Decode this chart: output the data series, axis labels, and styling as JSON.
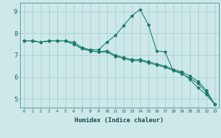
{
  "title": "",
  "xlabel": "Humidex (Indice chaleur)",
  "background_color": "#cce8e8",
  "grid_color": "#aacfcf",
  "line_color": "#1a7a6e",
  "x": [
    0,
    1,
    2,
    3,
    4,
    5,
    6,
    7,
    8,
    9,
    10,
    11,
    12,
    13,
    14,
    15,
    16,
    17,
    18,
    19,
    20,
    21,
    22,
    23
  ],
  "lines": [
    [
      7.65,
      7.65,
      7.6,
      7.65,
      7.65,
      7.65,
      7.6,
      7.35,
      7.25,
      7.25,
      7.6,
      7.9,
      8.35,
      8.8,
      9.1,
      8.4,
      7.2,
      7.15,
      6.3,
      6.2,
      5.9,
      5.5,
      5.2,
      4.75
    ],
    [
      7.65,
      7.65,
      7.6,
      7.65,
      7.65,
      7.65,
      7.5,
      7.3,
      7.2,
      7.15,
      7.2,
      7.0,
      6.9,
      6.8,
      6.8,
      6.7,
      6.6,
      6.5,
      6.35,
      6.25,
      6.05,
      5.8,
      5.4,
      4.75
    ],
    [
      7.65,
      7.65,
      7.6,
      7.65,
      7.65,
      7.65,
      7.5,
      7.3,
      7.2,
      7.15,
      7.15,
      6.95,
      6.85,
      6.75,
      6.75,
      6.65,
      6.55,
      6.45,
      6.3,
      6.15,
      5.95,
      5.7,
      5.3,
      4.75
    ]
  ],
  "xlim": [
    0,
    23
  ],
  "ylim": [
    4.6,
    9.4
  ],
  "yticks": [
    5,
    6,
    7,
    8,
    9
  ],
  "xticks": [
    0,
    1,
    2,
    3,
    4,
    5,
    6,
    7,
    8,
    9,
    10,
    11,
    12,
    13,
    14,
    15,
    16,
    17,
    18,
    19,
    20,
    21,
    22,
    23
  ]
}
